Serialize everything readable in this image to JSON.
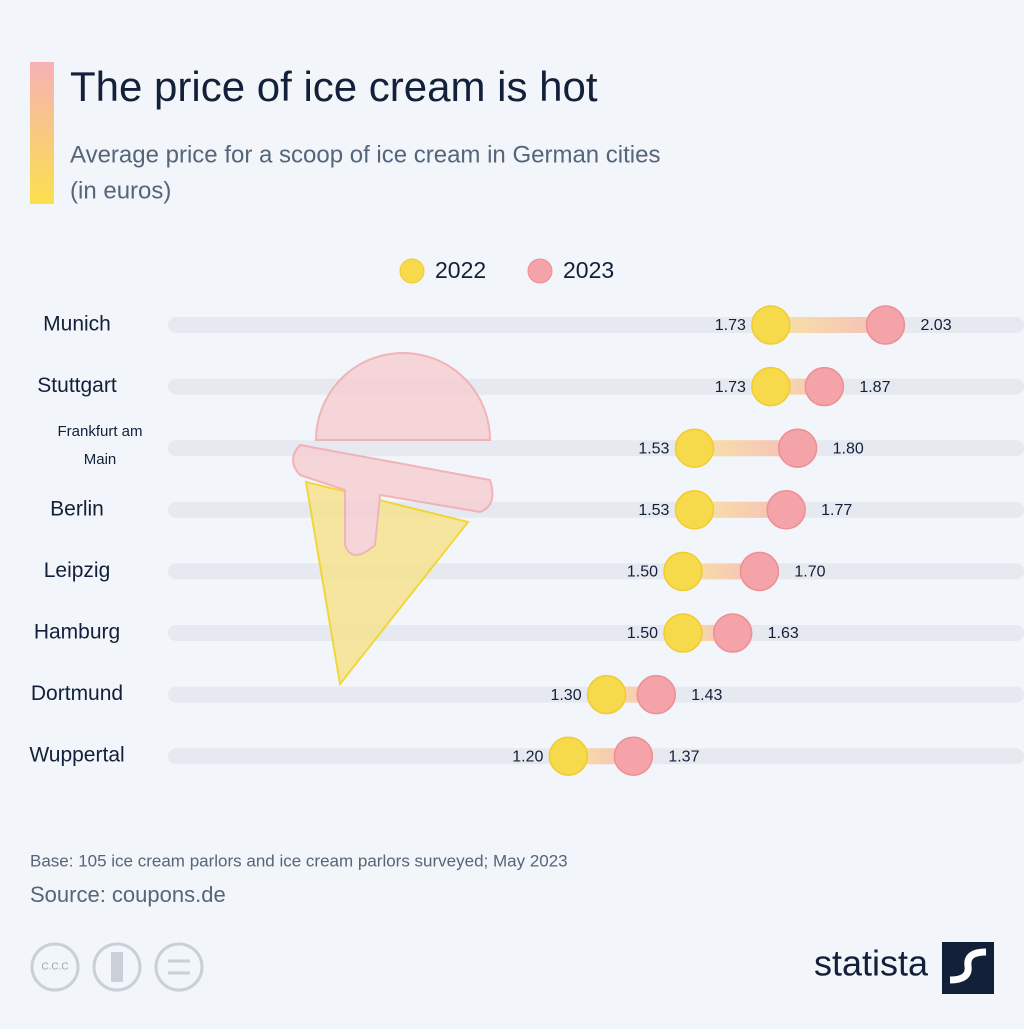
{
  "chart_data": {
    "type": "dumbbell",
    "title": "The price of ice cream is hot",
    "subtitle": [
      "Average price for a scoop of ice cream in German cities",
      "(in euros)"
    ],
    "categories": [
      "Munich",
      "Stuttgart",
      "Frankfurt am Main",
      "Berlin",
      "Leipzig",
      "Hamburg",
      "Dortmund",
      "Wuppertal"
    ],
    "series": [
      {
        "name": "2022",
        "color": "#f7d94c",
        "values": [
          1.73,
          1.73,
          1.53,
          1.53,
          1.5,
          1.5,
          1.3,
          1.2
        ],
        "value_labels": [
          "1.73",
          "1.73",
          "1.53",
          "1.53",
          "1.50",
          "1.50",
          "1.30",
          "1.20"
        ]
      },
      {
        "name": "2023",
        "color": "#f4a3a8",
        "values": [
          2.03,
          1.87,
          1.8,
          1.77,
          1.7,
          1.63,
          1.43,
          1.37
        ],
        "value_labels": [
          "2.03",
          "1.87",
          "1.80",
          "1.77",
          "1.70",
          "1.63",
          "1.43",
          "1.37"
        ]
      }
    ],
    "legend": "top",
    "note": "Base: 105 ice cream parlors and ice cream parlors surveyed; May 2023",
    "source": "Source: coupons.de"
  },
  "cc_label": "C.C.C",
  "brand": "statista"
}
